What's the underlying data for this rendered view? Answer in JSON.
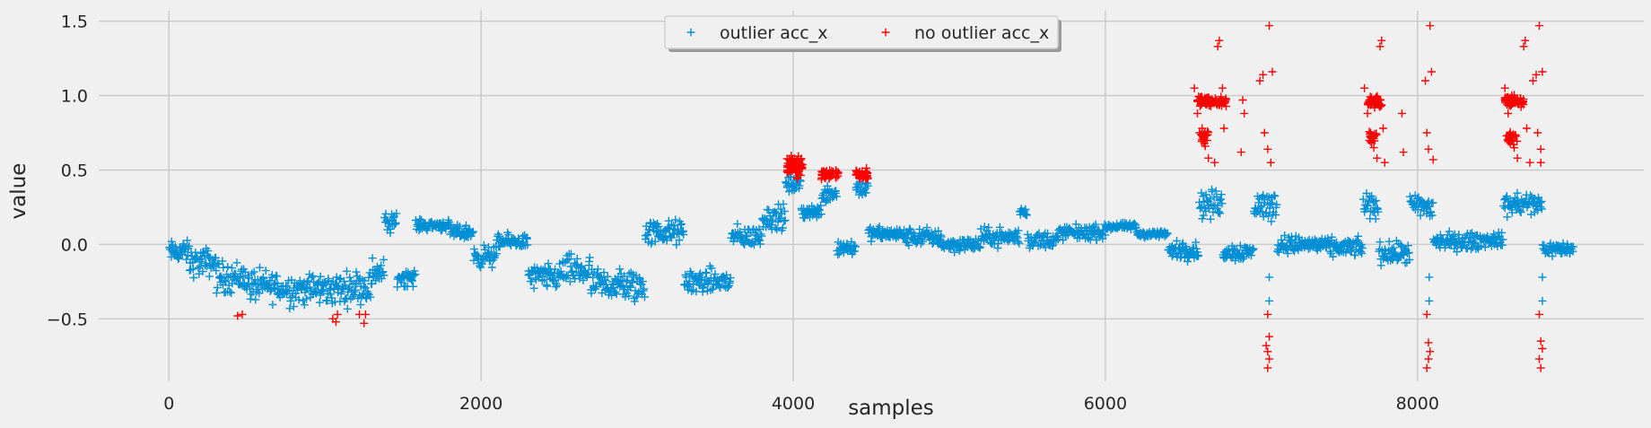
{
  "chart_data": {
    "type": "scatter",
    "marker": "+",
    "title": "",
    "xlabel": "samples",
    "ylabel": "value",
    "xlim": [
      -450,
      9450
    ],
    "ylim": [
      -0.92,
      1.57
    ],
    "xticks": [
      0,
      2000,
      4000,
      6000,
      8000
    ],
    "xtick_labels": [
      "0",
      "2000",
      "4000",
      "6000",
      "8000"
    ],
    "yticks": [
      -0.5,
      0.0,
      0.5,
      1.0,
      1.5
    ],
    "ytick_labels": [
      "−0.5",
      "0.0",
      "0.5",
      "1.0",
      "1.5"
    ],
    "grid": true,
    "legend": {
      "placement": "upper-center",
      "columns": 2
    },
    "series": [
      {
        "name": "outlier acc_x",
        "color": "#008fd5",
        "segments": [
          [
            0,
            130,
            -0.05,
            0.06
          ],
          [
            130,
            300,
            -0.12,
            0.08
          ],
          [
            300,
            500,
            -0.22,
            0.09
          ],
          [
            500,
            700,
            -0.28,
            0.09
          ],
          [
            700,
            900,
            -0.3,
            0.09
          ],
          [
            900,
            1050,
            -0.3,
            0.09
          ],
          [
            1050,
            1150,
            -0.3,
            0.09
          ],
          [
            1150,
            1300,
            -0.28,
            0.09
          ],
          [
            1300,
            1380,
            -0.18,
            0.08
          ],
          [
            1380,
            1460,
            0.14,
            0.06
          ],
          [
            1460,
            1580,
            -0.22,
            0.05
          ],
          [
            1580,
            1800,
            0.13,
            0.03
          ],
          [
            1800,
            1950,
            0.08,
            0.04
          ],
          [
            1950,
            2100,
            -0.08,
            0.06
          ],
          [
            2100,
            2300,
            0.02,
            0.04
          ],
          [
            2300,
            2500,
            -0.22,
            0.07
          ],
          [
            2500,
            2700,
            -0.18,
            0.09
          ],
          [
            2700,
            2900,
            -0.27,
            0.09
          ],
          [
            2900,
            3050,
            -0.28,
            0.1
          ],
          [
            3050,
            3300,
            0.08,
            0.07
          ],
          [
            3300,
            3600,
            -0.25,
            0.07
          ],
          [
            3600,
            3800,
            0.05,
            0.06
          ],
          [
            3800,
            3950,
            0.18,
            0.07
          ],
          [
            3950,
            4050,
            0.4,
            0.05
          ],
          [
            4050,
            4180,
            0.22,
            0.04
          ],
          [
            4180,
            4280,
            0.35,
            0.06
          ],
          [
            4280,
            4400,
            -0.02,
            0.05
          ],
          [
            4400,
            4480,
            0.38,
            0.05
          ],
          [
            4480,
            4700,
            0.07,
            0.04
          ],
          [
            4700,
            4950,
            0.05,
            0.05
          ],
          [
            4950,
            5200,
            0.0,
            0.04
          ],
          [
            5200,
            5450,
            0.05,
            0.05
          ],
          [
            5450,
            5500,
            0.22,
            0.03
          ],
          [
            5500,
            5700,
            0.03,
            0.05
          ],
          [
            5700,
            6000,
            0.08,
            0.04
          ],
          [
            6000,
            6200,
            0.12,
            0.02
          ],
          [
            6200,
            6400,
            0.07,
            0.02
          ],
          [
            6400,
            6600,
            -0.04,
            0.05
          ],
          [
            6600,
            6750,
            0.27,
            0.08
          ],
          [
            6750,
            6950,
            -0.05,
            0.05
          ],
          [
            6950,
            7100,
            0.26,
            0.08
          ],
          [
            7100,
            7400,
            0.0,
            0.05
          ],
          [
            7400,
            7650,
            -0.02,
            0.05
          ],
          [
            7650,
            7750,
            0.26,
            0.08
          ],
          [
            7750,
            7950,
            -0.06,
            0.06
          ],
          [
            7950,
            8100,
            0.25,
            0.08
          ],
          [
            8100,
            8400,
            0.02,
            0.05
          ],
          [
            8400,
            8550,
            0.03,
            0.04
          ],
          [
            8550,
            8800,
            0.27,
            0.07
          ],
          [
            8800,
            9000,
            -0.03,
            0.04
          ]
        ],
        "extra_points": [
          [
            7050,
            -0.22
          ],
          [
            7050,
            -0.38
          ],
          [
            8075,
            -0.22
          ],
          [
            8075,
            -0.38
          ],
          [
            8800,
            -0.22
          ],
          [
            8800,
            -0.38
          ]
        ]
      },
      {
        "name": "no outlier acc_x",
        "color": "#fc0000",
        "points": [
          [
            440,
            -0.48
          ],
          [
            470,
            -0.47
          ],
          [
            1050,
            -0.5
          ],
          [
            1070,
            -0.52
          ],
          [
            1080,
            -0.47
          ],
          [
            1250,
            -0.53
          ],
          [
            1260,
            -0.47
          ],
          [
            1220,
            -0.47
          ],
          [
            6570,
            1.05
          ],
          [
            6590,
            0.88
          ],
          [
            6620,
            0.78
          ],
          [
            6640,
            0.66
          ],
          [
            6660,
            0.58
          ],
          [
            6700,
            0.55
          ],
          [
            6720,
            1.33
          ],
          [
            6730,
            1.37
          ],
          [
            6750,
            1.05
          ],
          [
            6760,
            0.78
          ],
          [
            6870,
            0.62
          ],
          [
            6880,
            0.97
          ],
          [
            6890,
            0.88
          ],
          [
            6990,
            1.1
          ],
          [
            7010,
            1.14
          ],
          [
            7020,
            0.75
          ],
          [
            7040,
            0.64
          ],
          [
            7050,
            1.47
          ],
          [
            7060,
            0.55
          ],
          [
            7070,
            1.16
          ],
          [
            7040,
            -0.47
          ],
          [
            7050,
            -0.62
          ],
          [
            7030,
            -0.68
          ],
          [
            7040,
            -0.72
          ],
          [
            7050,
            -0.77
          ],
          [
            7040,
            -0.83
          ],
          [
            7660,
            1.05
          ],
          [
            7680,
            0.88
          ],
          [
            7700,
            0.75
          ],
          [
            7720,
            0.65
          ],
          [
            7740,
            0.58
          ],
          [
            7760,
            1.33
          ],
          [
            7770,
            1.37
          ],
          [
            7780,
            0.78
          ],
          [
            7790,
            0.55
          ],
          [
            7900,
            0.88
          ],
          [
            7910,
            0.62
          ],
          [
            8050,
            1.1
          ],
          [
            8060,
            0.75
          ],
          [
            8070,
            0.64
          ],
          [
            8080,
            1.47
          ],
          [
            8090,
            1.16
          ],
          [
            8100,
            0.57
          ],
          [
            8060,
            -0.47
          ],
          [
            8070,
            -0.66
          ],
          [
            8080,
            -0.72
          ],
          [
            8070,
            -0.77
          ],
          [
            8060,
            -0.83
          ],
          [
            8560,
            1.05
          ],
          [
            8580,
            0.88
          ],
          [
            8600,
            0.72
          ],
          [
            8620,
            0.65
          ],
          [
            8640,
            0.58
          ],
          [
            8680,
            1.33
          ],
          [
            8690,
            1.37
          ],
          [
            8700,
            0.78
          ],
          [
            8720,
            0.55
          ],
          [
            8740,
            1.1
          ],
          [
            8760,
            1.14
          ],
          [
            8770,
            0.75
          ],
          [
            8780,
            1.47
          ],
          [
            8790,
            0.64
          ],
          [
            8800,
            1.16
          ],
          [
            8790,
            0.55
          ],
          [
            8780,
            -0.47
          ],
          [
            8790,
            -0.65
          ],
          [
            8800,
            -0.7
          ],
          [
            8780,
            -0.77
          ],
          [
            8790,
            -0.83
          ]
        ],
        "clusters": [
          [
            3960,
            4060,
            0.53,
            0.06,
            70
          ],
          [
            4180,
            4290,
            0.47,
            0.03,
            40
          ],
          [
            4400,
            4480,
            0.47,
            0.03,
            35
          ],
          [
            6590,
            6690,
            0.96,
            0.03,
            60
          ],
          [
            6700,
            6780,
            0.96,
            0.03,
            30
          ],
          [
            7680,
            7780,
            0.96,
            0.03,
            60
          ],
          [
            8560,
            8680,
            0.96,
            0.03,
            60
          ],
          [
            6600,
            6660,
            0.72,
            0.04,
            22
          ],
          [
            7690,
            7740,
            0.72,
            0.04,
            20
          ],
          [
            8570,
            8640,
            0.72,
            0.04,
            22
          ]
        ]
      }
    ]
  }
}
